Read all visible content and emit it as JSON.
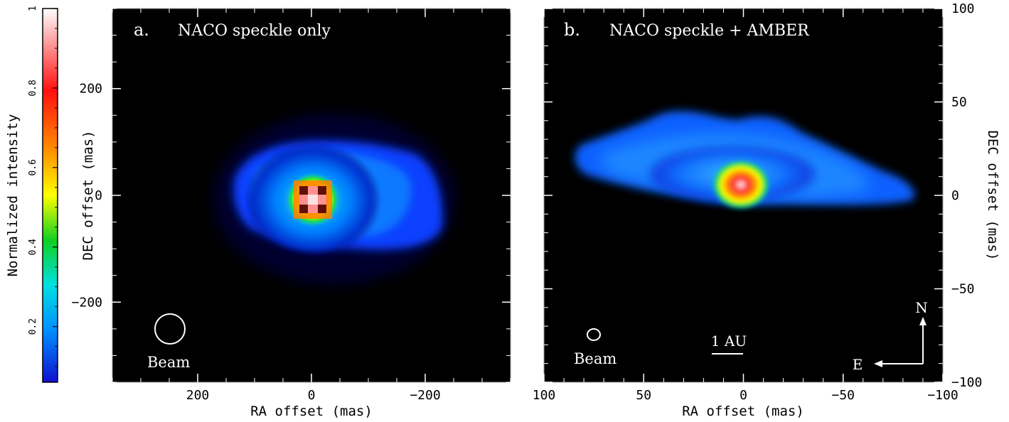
{
  "colorbar": {
    "label": "Normalized intensity",
    "ticks": [
      "0.2",
      "0.4",
      "0.6",
      "0.8",
      "1"
    ],
    "tick_values": [
      0.2,
      0.4,
      0.6,
      0.8,
      1.0
    ],
    "range": [
      0.06,
      1.0
    ],
    "colors": [
      "#1010d0",
      "#0090ff",
      "#00e0e0",
      "#10d020",
      "#ffff00",
      "#ff9000",
      "#ff1010",
      "#ffffff"
    ]
  },
  "panel_a": {
    "tag": "a.",
    "title": "NACO speckle only",
    "beam_label": "Beam",
    "xlabel": "RA offset (mas)",
    "ylabel": "DEC offset (mas)",
    "x_range": [
      350,
      -350
    ],
    "y_range": [
      -350,
      350
    ],
    "x_ticks": [
      200,
      0,
      -200
    ],
    "y_ticks": [
      200,
      0,
      -200
    ]
  },
  "panel_b": {
    "tag": "b.",
    "title": "NACO speckle + AMBER",
    "beam_label": "Beam",
    "scale_label": "1 AU",
    "north_label": "N",
    "east_label": "E",
    "xlabel": "RA offset (mas)",
    "ylabel": "DEC offset (mas)",
    "x_range": [
      100,
      -100
    ],
    "y_range": [
      -100,
      100
    ],
    "x_ticks": [
      100,
      50,
      0,
      -50,
      -100
    ],
    "y_ticks": [
      100,
      50,
      0,
      -50,
      -100
    ]
  },
  "tick_text": {
    "a_x": [
      "200",
      "0",
      "−200"
    ],
    "a_y": [
      "200",
      "0",
      "−200"
    ],
    "b_x": [
      "100",
      "50",
      "0",
      "−50",
      "−100"
    ],
    "b_y": [
      "100",
      "50",
      "0",
      "−50",
      "−100"
    ]
  }
}
